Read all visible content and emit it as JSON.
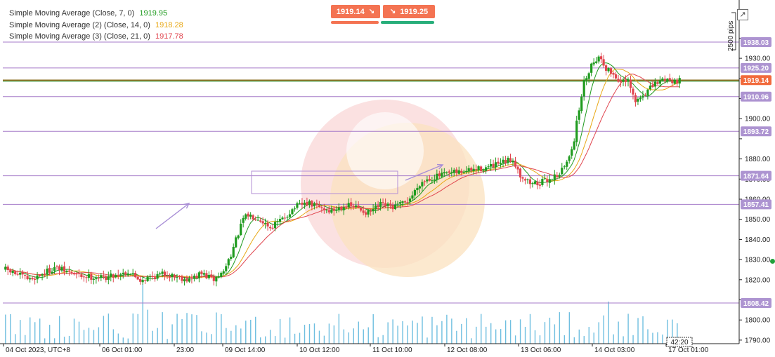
{
  "legend": [
    {
      "label": "Simple Moving Average (Close, 7, 0)",
      "value": "1919.95",
      "color": "#1f9b1f"
    },
    {
      "label": "Simple Moving Average (2) (Close, 14, 0)",
      "value": "1918.28",
      "color": "#e8a817"
    },
    {
      "label": "Simple Moving Average (3) (Close, 21, 0)",
      "value": "1917.78",
      "color": "#e0454e"
    }
  ],
  "trade": {
    "sell_price": "1919.14",
    "buy_price": "1919.25",
    "sell_color": "#f47352",
    "buy_color": "#f47352",
    "sell_underline": "#f47352",
    "buy_underline": "#27ae7a"
  },
  "pips_label": "2500 pips",
  "expand_icon": "↗",
  "time_readout": "42:20",
  "colors": {
    "up": "#1f9b1f",
    "down": "#e0454e",
    "level": "#a67bc9",
    "level_tag": "#ad94d1",
    "price_tag": "#f16a3c",
    "volume": "#6fbfe0"
  },
  "chart_data": {
    "type": "candlestick",
    "y_axis": {
      "min": 1780,
      "max": 1945,
      "ticks": [
        1790,
        1800,
        1810,
        1820,
        1830,
        1840,
        1850,
        1860,
        1870,
        1880,
        1890,
        1900,
        1910,
        1920,
        1930,
        1940
      ],
      "tick_labels": [
        "1790.00",
        "1800.00",
        "",
        "1820.00",
        "1830.00",
        "1840.00",
        "1850.00",
        "1860.00",
        "1870.00",
        "1880.00",
        "",
        "1900.00",
        "",
        "",
        "1930.00",
        ""
      ]
    },
    "x_axis": {
      "labels": [
        "04 Oct 2023, UTC+8",
        "06 Oct 01:00",
        "23:00",
        "09 Oct 14:00",
        "10 Oct 12:00",
        "11 Oct 10:00",
        "12 Oct 08:00",
        "13 Oct 06:00",
        "14 Oct 03:00",
        "17 Oct 01:00"
      ]
    },
    "horizontal_levels": [
      {
        "value": 1938.03,
        "label": "1938.03"
      },
      {
        "value": 1925.2,
        "label": "1925.20"
      },
      {
        "value": 1910.96,
        "label": "1910.96"
      },
      {
        "value": 1893.72,
        "label": "1893.72"
      },
      {
        "value": 1871.64,
        "label": "1871.64"
      },
      {
        "value": 1857.41,
        "label": "1857.41"
      },
      {
        "value": 1808.42,
        "label": "1808.42"
      }
    ],
    "current_price": {
      "value": 1919.14,
      "label": "1919.14"
    },
    "price_path": [
      [
        0,
        1825
      ],
      [
        10,
        1820
      ],
      [
        20,
        1826
      ],
      [
        30,
        1822
      ],
      [
        40,
        1821
      ],
      [
        50,
        1824
      ],
      [
        55,
        1820
      ],
      [
        65,
        1823
      ],
      [
        75,
        1820
      ],
      [
        80,
        1823
      ],
      [
        85,
        1820
      ],
      [
        89,
        1824
      ],
      [
        93,
        1836
      ],
      [
        97,
        1850
      ],
      [
        99,
        1852
      ],
      [
        103,
        1851
      ],
      [
        108,
        1846
      ],
      [
        113,
        1850
      ],
      [
        118,
        1856
      ],
      [
        123,
        1858
      ],
      [
        128,
        1856
      ],
      [
        133,
        1854
      ],
      [
        138,
        1857
      ],
      [
        143,
        1856
      ],
      [
        148,
        1853
      ],
      [
        153,
        1857
      ],
      [
        158,
        1856
      ],
      [
        163,
        1858
      ],
      [
        166,
        1862
      ],
      [
        169,
        1868
      ],
      [
        172,
        1870
      ],
      [
        178,
        1872
      ],
      [
        183,
        1873
      ],
      [
        188,
        1874
      ],
      [
        193,
        1875
      ],
      [
        198,
        1876
      ],
      [
        203,
        1878
      ],
      [
        207,
        1880
      ],
      [
        210,
        1872
      ],
      [
        214,
        1868
      ],
      [
        218,
        1868
      ],
      [
        222,
        1870
      ],
      [
        226,
        1873
      ],
      [
        229,
        1878
      ],
      [
        232,
        1890
      ],
      [
        234,
        1905
      ],
      [
        236,
        1918
      ],
      [
        239,
        1927
      ],
      [
        241,
        1930
      ],
      [
        243,
        1930
      ],
      [
        245,
        1925
      ],
      [
        248,
        1922
      ],
      [
        251,
        1918
      ],
      [
        254,
        1918
      ],
      [
        257,
        1908
      ],
      [
        260,
        1912
      ],
      [
        263,
        1915
      ],
      [
        266,
        1918
      ],
      [
        269,
        1920
      ],
      [
        272,
        1919
      ],
      [
        276,
        1919
      ]
    ],
    "sma_series": [
      {
        "name": "Simple Moving Average (Close, 7, 0)",
        "period": 7,
        "final_value": 1919.95
      },
      {
        "name": "Simple Moving Average (2) (Close, 14, 0)",
        "period": 14,
        "final_value": 1918.28
      },
      {
        "name": "Simple Moving Average (3) (Close, 21, 0)",
        "period": 21,
        "final_value": 1917.78
      }
    ],
    "volume_profile": [
      {
        "from": 0,
        "to": 55,
        "level": 0.5
      },
      {
        "from": 55,
        "to": 60,
        "level": 0.95
      },
      {
        "from": 60,
        "to": 245,
        "level": 0.5
      },
      {
        "from": 245,
        "to": 252,
        "level": 0.95
      },
      {
        "from": 252,
        "to": 276,
        "level": 0.5
      }
    ]
  }
}
